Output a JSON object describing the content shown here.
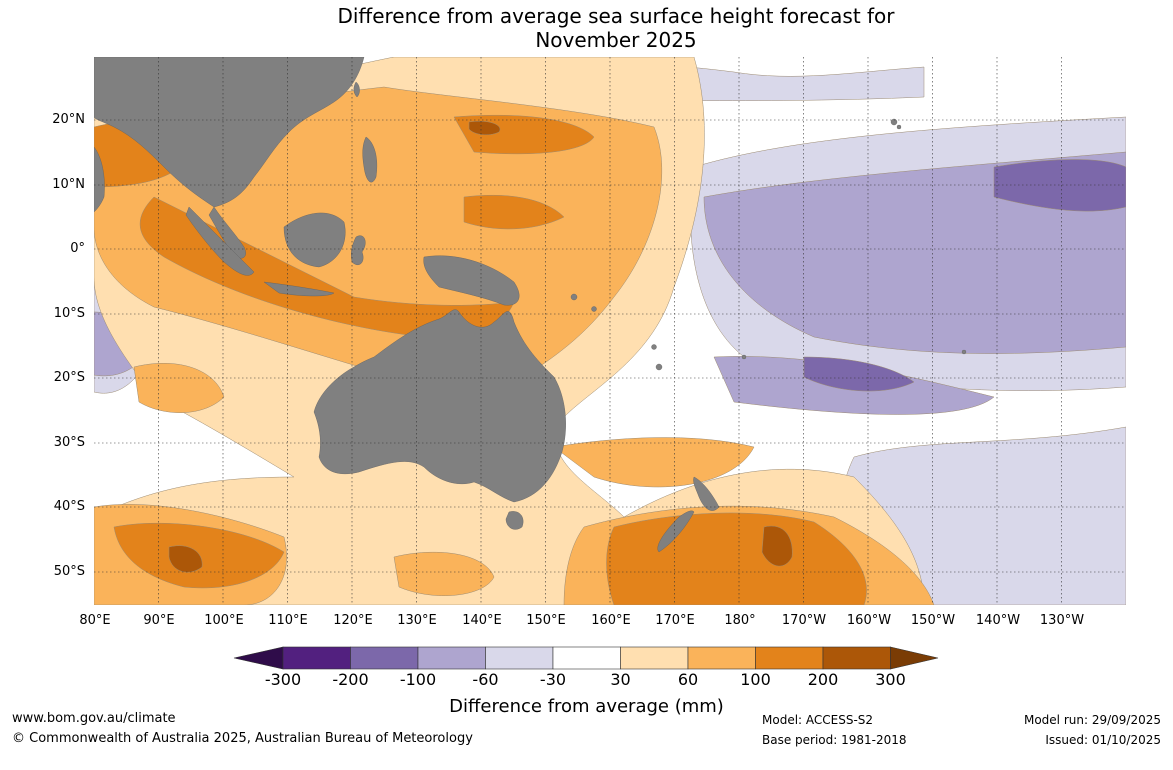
{
  "title_line1": "Difference from average sea surface height forecast for",
  "title_line2": "November 2025",
  "latitudes": [
    "20°N",
    "10°N",
    "0°",
    "10°S",
    "20°S",
    "30°S",
    "40°S",
    "50°S"
  ],
  "longitudes": [
    "80°E",
    "90°E",
    "100°E",
    "110°E",
    "120°E",
    "130°E",
    "140°E",
    "150°E",
    "160°E",
    "170°E",
    "180°",
    "170°W",
    "160°W",
    "150°W",
    "140°W",
    "130°W"
  ],
  "legend": {
    "title": "Difference from average (mm)",
    "ticks": [
      "-300",
      "-200",
      "-100",
      "-60",
      "-30",
      "30",
      "60",
      "100",
      "200",
      "300"
    ],
    "colors": [
      "#2f0c4a",
      "#52207f",
      "#7c68aa",
      "#aea5cf",
      "#d9d8ea",
      "#ffffff",
      "#ffdfb0",
      "#fab35a",
      "#e3831b",
      "#ac5708",
      "#7a3c05"
    ]
  },
  "colors": {
    "land": "#808080",
    "neg1": "#d9d8ea",
    "neg2": "#aea5cf",
    "neg3": "#7c68aa",
    "neg4": "#52207f",
    "pos1": "#ffdfb0",
    "pos2": "#fab35a",
    "pos3": "#e3831b",
    "pos4": "#ac5708"
  },
  "footer": {
    "url": "www.bom.gov.au/climate",
    "copyright": "© Commonwealth of Australia 2025, Australian Bureau of Meteorology",
    "model": "Model: ACCESS-S2",
    "base_period": "Base period: 1981-2018",
    "model_run": "Model run: 29/09/2025",
    "issued": "Issued: 01/10/2025"
  }
}
